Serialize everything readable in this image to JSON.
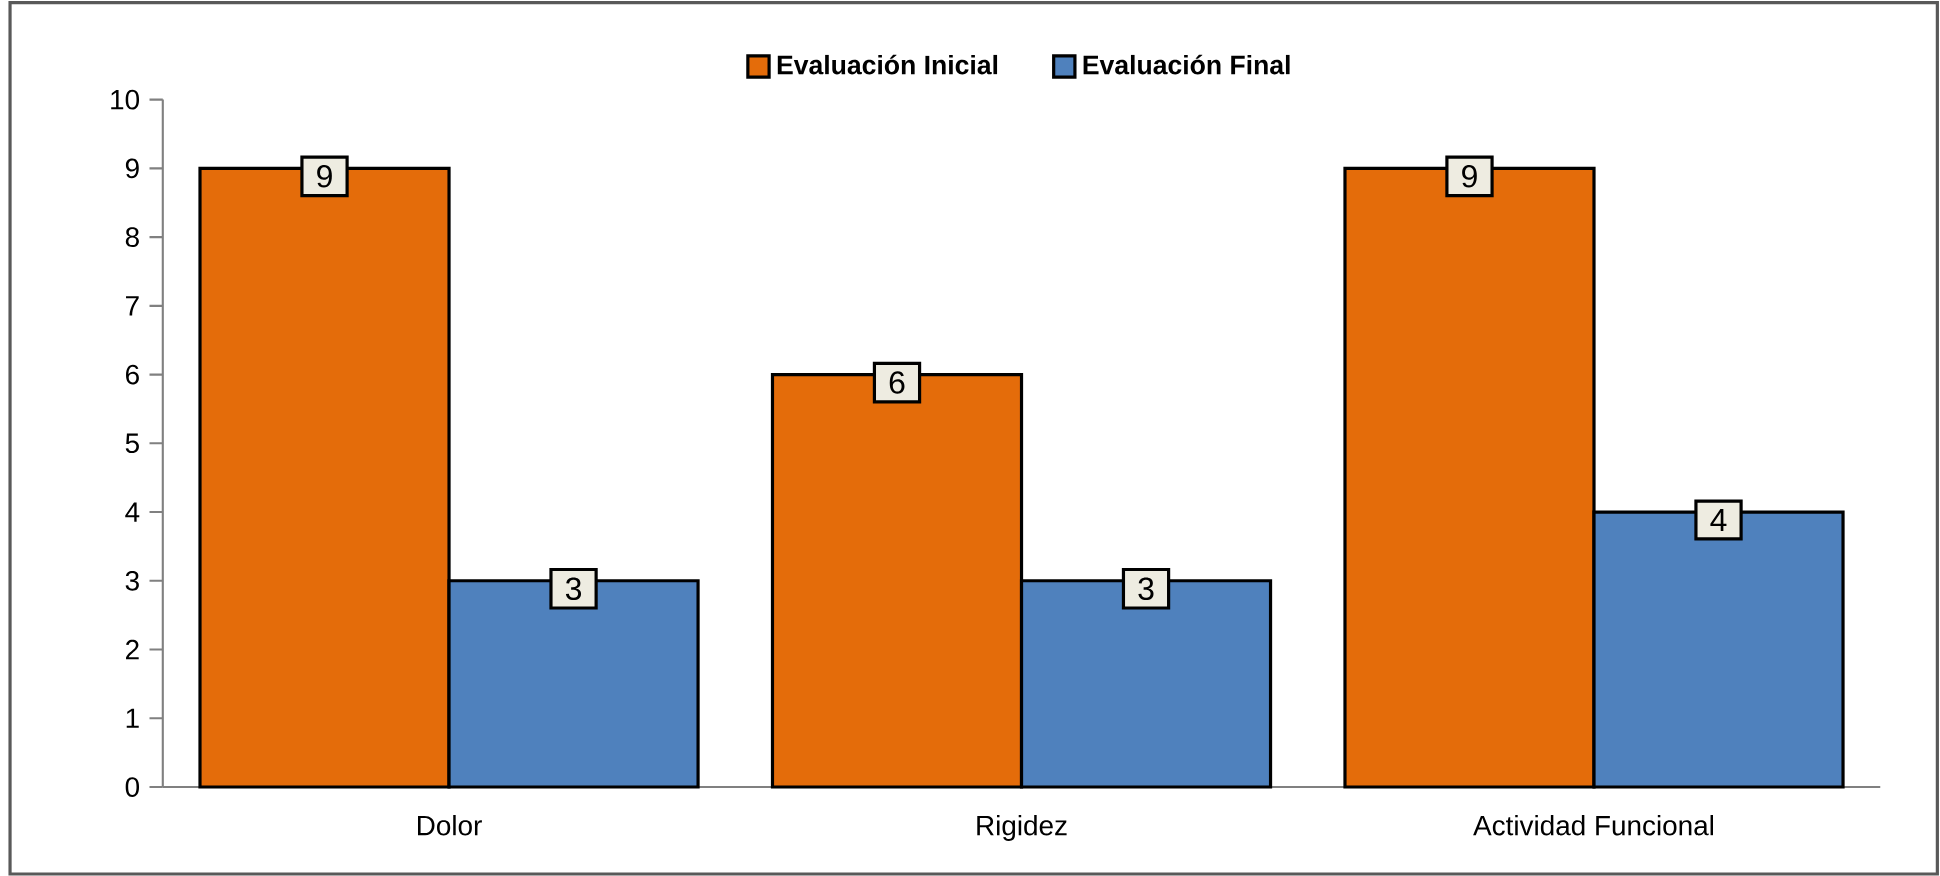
{
  "chart_data": {
    "type": "bar",
    "categories": [
      "Dolor",
      "Rigidez",
      "Actividad Funcional"
    ],
    "series": [
      {
        "name": "Evaluación Inicial",
        "color": "#e46c0a",
        "values": [
          9,
          6,
          9
        ]
      },
      {
        "name": "Evaluación Final",
        "color": "#4f81bd",
        "values": [
          3,
          3,
          4
        ]
      }
    ],
    "ylim": [
      0,
      10
    ],
    "yticks": [
      0,
      1,
      2,
      3,
      4,
      5,
      6,
      7,
      8,
      9,
      10
    ],
    "data_labels": true,
    "legend": "top"
  }
}
